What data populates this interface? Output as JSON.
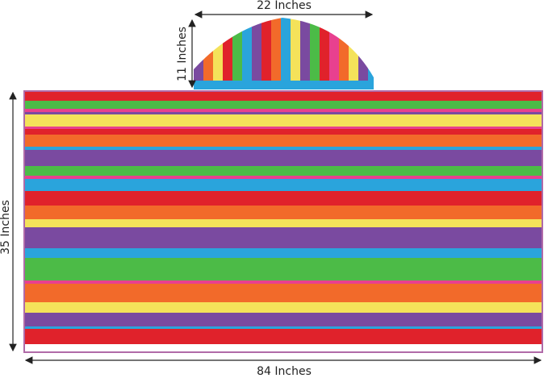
{
  "dimensions": {
    "hood_width": "22 Inches",
    "hood_height": "11 Inches",
    "towel_height": "35 Inches",
    "towel_width": "84 Inches"
  }
}
